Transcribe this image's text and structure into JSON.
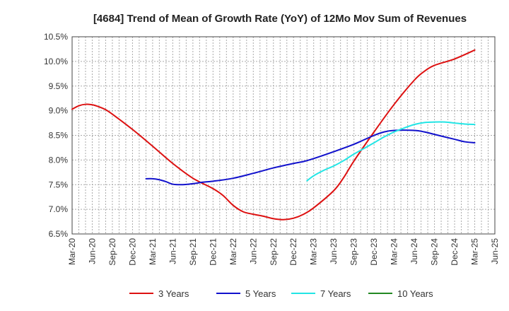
{
  "chart_data": {
    "type": "line",
    "title": "[4684]  Trend of Mean of Growth Rate (YoY) of 12Mo Mov Sum of Revenues",
    "xlabel": "",
    "ylabel": "",
    "ylim": [
      6.5,
      10.5
    ],
    "y_ticks": [
      "6.5%",
      "7.0%",
      "7.5%",
      "8.0%",
      "8.5%",
      "9.0%",
      "9.5%",
      "10.0%",
      "10.5%"
    ],
    "y_tick_values": [
      6.5,
      7.0,
      7.5,
      8.0,
      8.5,
      9.0,
      9.5,
      10.0,
      10.5
    ],
    "x_ticks": [
      "Mar-20",
      "Jun-20",
      "Sep-20",
      "Dec-20",
      "Mar-21",
      "Jun-21",
      "Sep-21",
      "Dec-21",
      "Mar-22",
      "Jun-22",
      "Sep-22",
      "Dec-22",
      "Mar-23",
      "Jun-23",
      "Sep-23",
      "Dec-23",
      "Mar-24",
      "Jun-24",
      "Sep-24",
      "Dec-24",
      "Mar-25",
      "Jun-25"
    ],
    "grid": true,
    "legend_position": "bottom",
    "series": [
      {
        "name": "3 Years",
        "color": "#dd1111",
        "points": [
          [
            0,
            9.03
          ],
          [
            0.33,
            9.1
          ],
          [
            0.67,
            9.13
          ],
          [
            1,
            9.12
          ],
          [
            1.33,
            9.08
          ],
          [
            1.67,
            9.02
          ],
          [
            2,
            8.93
          ],
          [
            3,
            8.62
          ],
          [
            4,
            8.28
          ],
          [
            5,
            7.93
          ],
          [
            6,
            7.63
          ],
          [
            7,
            7.42
          ],
          [
            7.5,
            7.28
          ],
          [
            8,
            7.08
          ],
          [
            8.5,
            6.95
          ],
          [
            9,
            6.9
          ],
          [
            9.5,
            6.86
          ],
          [
            10,
            6.81
          ],
          [
            10.5,
            6.79
          ],
          [
            11,
            6.82
          ],
          [
            11.5,
            6.9
          ],
          [
            12,
            7.03
          ],
          [
            13,
            7.38
          ],
          [
            13.5,
            7.65
          ],
          [
            14,
            7.98
          ],
          [
            15,
            8.57
          ],
          [
            16,
            9.13
          ],
          [
            17,
            9.62
          ],
          [
            17.5,
            9.8
          ],
          [
            18,
            9.92
          ],
          [
            19,
            10.05
          ],
          [
            20,
            10.23
          ]
        ]
      },
      {
        "name": "5 Years",
        "color": "#1111cc",
        "points": [
          [
            3.67,
            7.62
          ],
          [
            4,
            7.62
          ],
          [
            4.33,
            7.6
          ],
          [
            4.67,
            7.56
          ],
          [
            5,
            7.51
          ],
          [
            5.5,
            7.5
          ],
          [
            6,
            7.52
          ],
          [
            6.5,
            7.55
          ],
          [
            7,
            7.57
          ],
          [
            8,
            7.63
          ],
          [
            9,
            7.73
          ],
          [
            10,
            7.84
          ],
          [
            11,
            7.93
          ],
          [
            11.5,
            7.97
          ],
          [
            12,
            8.03
          ],
          [
            13,
            8.17
          ],
          [
            14,
            8.32
          ],
          [
            15,
            8.5
          ],
          [
            15.5,
            8.57
          ],
          [
            16,
            8.6
          ],
          [
            17,
            8.6
          ],
          [
            17.5,
            8.57
          ],
          [
            18,
            8.52
          ],
          [
            19,
            8.42
          ],
          [
            19.5,
            8.37
          ],
          [
            20,
            8.35
          ]
        ]
      },
      {
        "name": "7 Years",
        "color": "#22e5e5",
        "points": [
          [
            11.67,
            7.58
          ],
          [
            12,
            7.68
          ],
          [
            12.5,
            7.79
          ],
          [
            13,
            7.88
          ],
          [
            13.5,
            7.99
          ],
          [
            14,
            8.12
          ],
          [
            15,
            8.35
          ],
          [
            15.5,
            8.47
          ],
          [
            16,
            8.57
          ],
          [
            16.5,
            8.65
          ],
          [
            17,
            8.72
          ],
          [
            17.5,
            8.76
          ],
          [
            18,
            8.77
          ],
          [
            18.5,
            8.77
          ],
          [
            19,
            8.75
          ],
          [
            19.5,
            8.73
          ],
          [
            20,
            8.72
          ]
        ]
      },
      {
        "name": "10 Years",
        "color": "#228822",
        "points": []
      }
    ]
  }
}
